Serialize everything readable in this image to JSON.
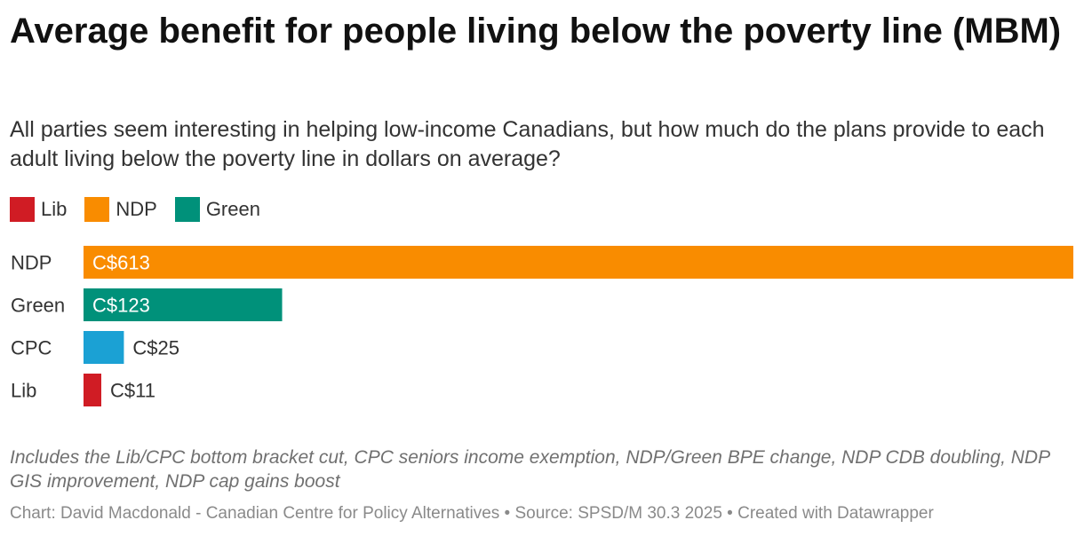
{
  "header": {
    "title": "Average benefit for people living below the poverty line (MBM)",
    "subtitle": "All parties seem interesting in helping low-income Canadians, but how much do the plans provide to each adult living below the poverty line in dollars on average?"
  },
  "legend": {
    "items": [
      {
        "label": "Lib",
        "color": "#d01c24"
      },
      {
        "label": "NDP",
        "color": "#f98c00"
      },
      {
        "label": "Green",
        "color": "#00917a"
      }
    ]
  },
  "chart_data": {
    "type": "bar",
    "orientation": "horizontal",
    "categories": [
      "NDP",
      "Green",
      "CPC",
      "Lib"
    ],
    "values": [
      613,
      123,
      25,
      11
    ],
    "value_labels": [
      "C$613",
      "C$123",
      "C$25",
      "C$11"
    ],
    "colors": [
      "#f98c00",
      "#00917a",
      "#1ba1d4",
      "#d01c24"
    ],
    "title": "Average benefit for people living below the poverty line (MBM)",
    "xlabel": "",
    "ylabel": "",
    "xlim": [
      0,
      613
    ],
    "grid": false,
    "legend_position": "top-left"
  },
  "notes": "Includes the Lib/CPC bottom bracket cut, CPC seniors income exemption, NDP/Green BPE change, NDP CDB doubling, NDP GIS improvement, NDP cap gains boost",
  "footer": {
    "text": "Chart: David Macdonald - Canadian Centre for Policy Alternatives • Source: SPSD/M 30.3 2025 • Created with Datawrapper"
  }
}
